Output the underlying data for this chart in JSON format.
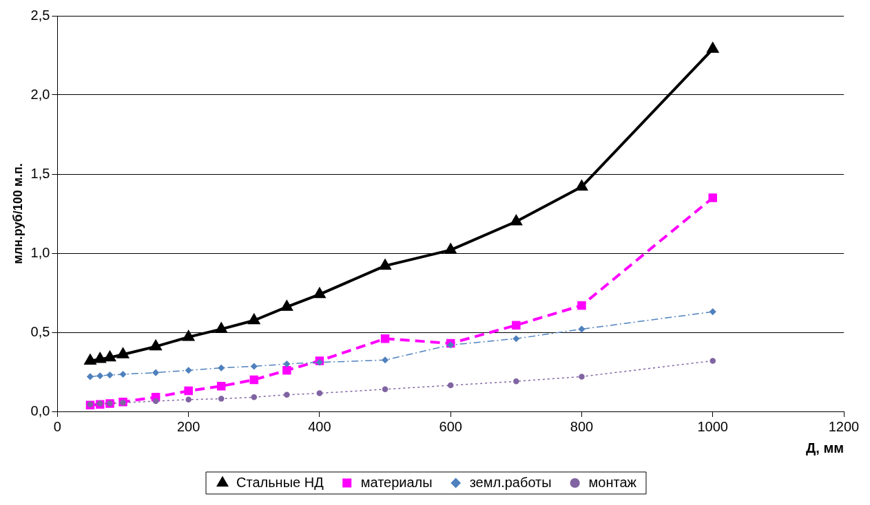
{
  "chart_data": {
    "type": "line",
    "xlabel": "Д, мм",
    "ylabel": "млн.руб/100 м.п.",
    "x": [
      50,
      65,
      80,
      100,
      150,
      200,
      250,
      300,
      350,
      400,
      500,
      600,
      700,
      800,
      1000
    ],
    "xlim": [
      0,
      1200
    ],
    "xticks": [
      0,
      200,
      400,
      600,
      800,
      1000,
      1200
    ],
    "ylim": [
      0,
      2.5
    ],
    "yticks": [
      {
        "value": 0,
        "label": "0,0"
      },
      {
        "value": 0.5,
        "label": "0,5"
      },
      {
        "value": 1,
        "label": "1,0"
      },
      {
        "value": 1.5,
        "label": "1,5"
      },
      {
        "value": 2,
        "label": "2,0"
      },
      {
        "value": 2.5,
        "label": "2,5"
      }
    ],
    "grid": "y",
    "legend": "bottom",
    "series": [
      {
        "name": "Стальные НД",
        "color": "#000000",
        "marker": "triangle",
        "line_style": "solid",
        "values": [
          0.32,
          0.33,
          0.34,
          0.36,
          0.41,
          0.47,
          0.52,
          0.575,
          0.66,
          0.74,
          0.92,
          1.02,
          1.2,
          1.42,
          2.29
        ]
      },
      {
        "name": "материалы",
        "color": "#ff00ff",
        "marker": "square",
        "line_style": "dashed",
        "values": [
          0.04,
          0.045,
          0.05,
          0.06,
          0.09,
          0.13,
          0.16,
          0.2,
          0.26,
          0.32,
          0.46,
          0.43,
          0.545,
          0.67,
          1.35
        ]
      },
      {
        "name": "земл.работы",
        "color": "#4f81bd",
        "marker": "diamond",
        "line_style": "dashdot",
        "values": [
          0.22,
          0.225,
          0.23,
          0.235,
          0.245,
          0.26,
          0.275,
          0.285,
          0.3,
          0.31,
          0.325,
          0.42,
          0.46,
          0.52,
          0.63
        ]
      },
      {
        "name": "монтаж",
        "color": "#8064a2",
        "marker": "circle",
        "line_style": "dotted",
        "values": [
          0.045,
          0.05,
          0.05,
          0.055,
          0.065,
          0.075,
          0.08,
          0.09,
          0.105,
          0.115,
          0.14,
          0.165,
          0.19,
          0.22,
          0.32
        ]
      }
    ]
  }
}
